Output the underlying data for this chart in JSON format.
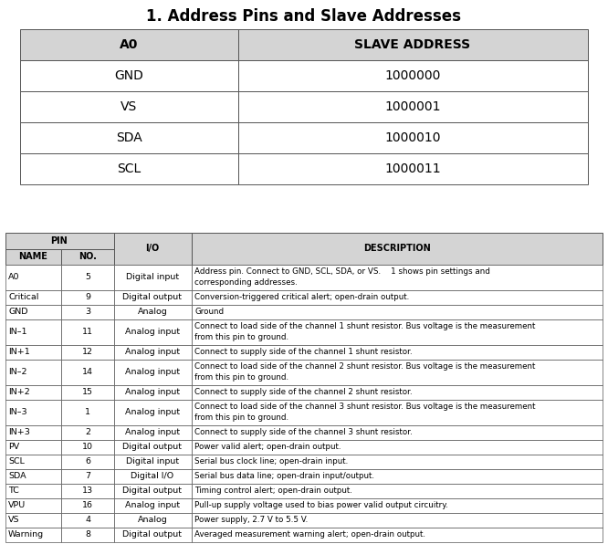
{
  "title": "1. Address Pins and Slave Addresses",
  "table1": {
    "headers": [
      "A0",
      "SLAVE ADDRESS"
    ],
    "rows": [
      [
        "GND",
        "1000000"
      ],
      [
        "VS",
        "1000001"
      ],
      [
        "SDA",
        "1000010"
      ],
      [
        "SCL",
        "1000011"
      ]
    ],
    "col_split": 0.385
  },
  "table2": {
    "pin_header": "PIN",
    "col_headers": [
      "NAME",
      "NO.",
      "I/O",
      "DESCRIPTION"
    ],
    "col_splits": [
      0.094,
      0.183,
      0.313
    ],
    "rows": [
      [
        "A0",
        "5",
        "Digital input",
        "Address pin. Connect to GND, SCL, SDA, or VS.    1 shows pin settings and\ncorresponding addresses."
      ],
      [
        "Critical",
        "9",
        "Digital output",
        "Conversion-triggered critical alert; open-drain output."
      ],
      [
        "GND",
        "3",
        "Analog",
        "Ground"
      ],
      [
        "IN–1",
        "11",
        "Analog input",
        "Connect to load side of the channel 1 shunt resistor. Bus voltage is the measurement\nfrom this pin to ground."
      ],
      [
        "IN+1",
        "12",
        "Analog input",
        "Connect to supply side of the channel 1 shunt resistor."
      ],
      [
        "IN–2",
        "14",
        "Analog input",
        "Connect to load side of the channel 2 shunt resistor. Bus voltage is the measurement\nfrom this pin to ground."
      ],
      [
        "IN+2",
        "15",
        "Analog input",
        "Connect to supply side of the channel 2 shunt resistor."
      ],
      [
        "IN–3",
        "1",
        "Analog input",
        "Connect to load side of the channel 3 shunt resistor. Bus voltage is the measurement\nfrom this pin to ground."
      ],
      [
        "IN+3",
        "2",
        "Analog input",
        "Connect to supply side of the channel 3 shunt resistor."
      ],
      [
        "PV",
        "10",
        "Digital output",
        "Power valid alert; open-drain output."
      ],
      [
        "SCL",
        "6",
        "Digital input",
        "Serial bus clock line; open-drain input."
      ],
      [
        "SDA",
        "7",
        "Digital I/O",
        "Serial bus data line; open-drain input/output."
      ],
      [
        "TC",
        "13",
        "Digital output",
        "Timing control alert; open-drain output."
      ],
      [
        "VPU",
        "16",
        "Analog input",
        "Pull-up supply voltage used to bias power valid output circuitry."
      ],
      [
        "VS",
        "4",
        "Analog",
        "Power supply, 2.7 V to 5.5 V."
      ],
      [
        "Warning",
        "8",
        "Digital output",
        "Averaged measurement warning alert; open-drain output."
      ]
    ]
  },
  "bg_color": "#ffffff",
  "header_fill": "#d4d4d4",
  "border_color": "#555555",
  "title_fontsize": 12,
  "t1_header_fontsize": 10,
  "t1_cell_fontsize": 10,
  "t2_header_fontsize": 7,
  "t2_cell_fontsize": 6.8
}
